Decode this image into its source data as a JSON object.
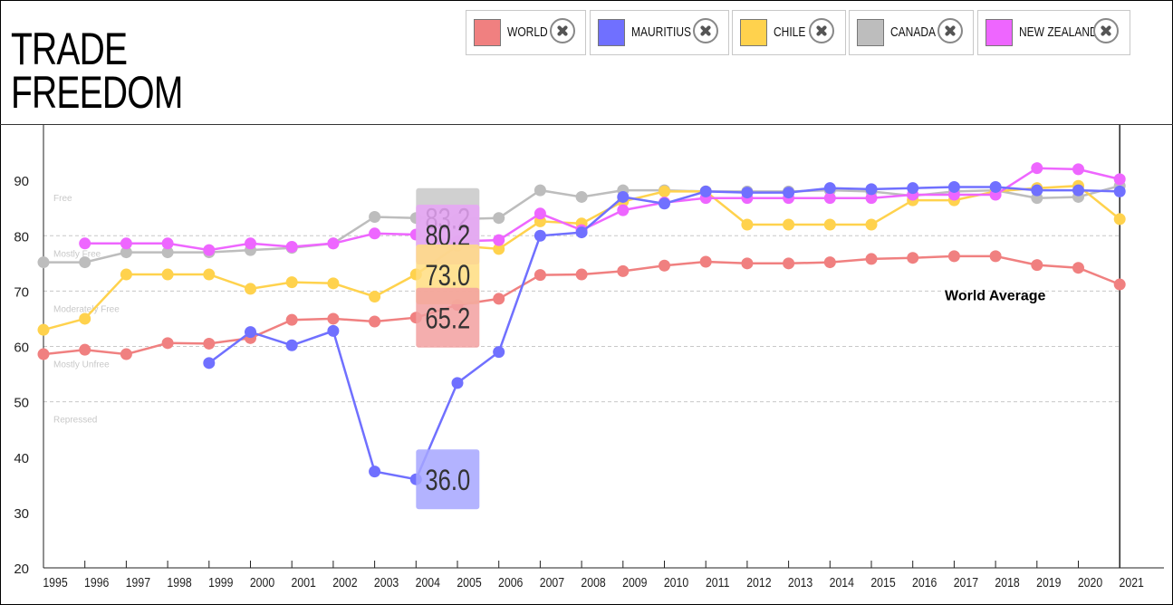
{
  "title_lines": [
    "TRADE",
    "FREEDOM"
  ],
  "legend": [
    {
      "label": "WORLD",
      "color": "#f08080"
    },
    {
      "label": "MAURITIUS",
      "color": "#7070ff"
    },
    {
      "label": "CHILE",
      "color": "#ffd24d"
    },
    {
      "label": "CANADA",
      "color": "#bdbdbd"
    },
    {
      "label": "NEW ZEALAND",
      "color": "#ee66ff"
    }
  ],
  "chart_data": {
    "type": "line",
    "title": "TRADE FREEDOM",
    "x": [
      "1995",
      "1996",
      "1997",
      "1998",
      "1999",
      "2000",
      "2001",
      "2002",
      "2003",
      "2004",
      "2005",
      "2006",
      "2007",
      "2008",
      "2009",
      "2010",
      "2011",
      "2012",
      "2013",
      "2014",
      "2015",
      "2016",
      "2017",
      "2018",
      "2019",
      "2020",
      "2021"
    ],
    "ylim": [
      20,
      100
    ],
    "yticks": [
      20,
      30,
      40,
      50,
      60,
      70,
      80,
      90
    ],
    "grid": "dashed horizontal at 50, 60, 70, 80",
    "bands": [
      {
        "label": "Free",
        "value": 90
      },
      {
        "label": "Mostly Free",
        "value": 80
      },
      {
        "label": "Moderately Free",
        "value": 70
      },
      {
        "label": "Mostly Unfree",
        "value": 60
      },
      {
        "label": "Repressed",
        "value": 50
      }
    ],
    "series": [
      {
        "name": "CANADA",
        "color": "#bdbdbd",
        "values": [
          75.2,
          75.2,
          77.0,
          77.0,
          77.0,
          77.4,
          77.8,
          78.6,
          83.4,
          83.2,
          83.0,
          83.2,
          88.2,
          87.0,
          88.2,
          88.2,
          88.0,
          88.0,
          88.0,
          88.2,
          88.0,
          87.2,
          88.0,
          88.2,
          86.8,
          87.0,
          89.0
        ]
      },
      {
        "name": "WORLD",
        "color": "#f08080",
        "values": [
          58.6,
          59.4,
          58.6,
          60.6,
          60.5,
          61.5,
          64.8,
          65.0,
          64.5,
          65.2,
          67.5,
          68.6,
          72.9,
          73.0,
          73.6,
          74.6,
          75.3,
          75.0,
          75.0,
          75.2,
          75.8,
          76.0,
          76.3,
          76.3,
          74.7,
          74.2,
          71.2
        ]
      },
      {
        "name": "CHILE",
        "color": "#ffd24d",
        "values": [
          63.0,
          65.0,
          73.0,
          73.0,
          73.0,
          70.4,
          71.6,
          71.4,
          69.0,
          73.0,
          78.2,
          77.6,
          82.6,
          82.2,
          86.2,
          88.0,
          88.0,
          82.0,
          82.0,
          82.0,
          82.0,
          86.4,
          86.4,
          88.0,
          88.6,
          89.0,
          83.0
        ]
      },
      {
        "name": "NEW ZEALAND",
        "color": "#ee66ff",
        "values": [
          null,
          78.6,
          78.6,
          78.6,
          77.4,
          78.6,
          78.0,
          78.6,
          80.4,
          80.2,
          79.0,
          79.2,
          84.0,
          81.0,
          84.6,
          86.0,
          86.8,
          86.8,
          86.8,
          86.8,
          86.8,
          87.4,
          87.4,
          87.4,
          92.2,
          92.0,
          90.2
        ]
      },
      {
        "name": "MAURITIUS",
        "color": "#7070ff",
        "values": [
          null,
          null,
          null,
          null,
          57.0,
          62.6,
          60.2,
          62.8,
          37.4,
          36.0,
          53.4,
          59.0,
          80.0,
          80.6,
          87.0,
          85.8,
          88.0,
          87.8,
          87.8,
          88.6,
          88.4,
          88.6,
          88.8,
          88.8,
          88.2,
          88.2,
          88.0
        ]
      }
    ],
    "highlight_year": "2004",
    "callouts": [
      {
        "label": "83.2",
        "series": "CANADA",
        "color": "#c8c8c8"
      },
      {
        "label": "80.2",
        "series": "NEW ZEALAND",
        "color": "#e7a4f7"
      },
      {
        "label": "73.0",
        "series": "CHILE",
        "color": "#ffdd80"
      },
      {
        "label": "65.2",
        "series": "WORLD",
        "color": "#f2a0a0"
      },
      {
        "label": "36.0",
        "series": "MAURITIUS",
        "color": "#a6a6ff"
      }
    ],
    "annotation": "World Average"
  }
}
